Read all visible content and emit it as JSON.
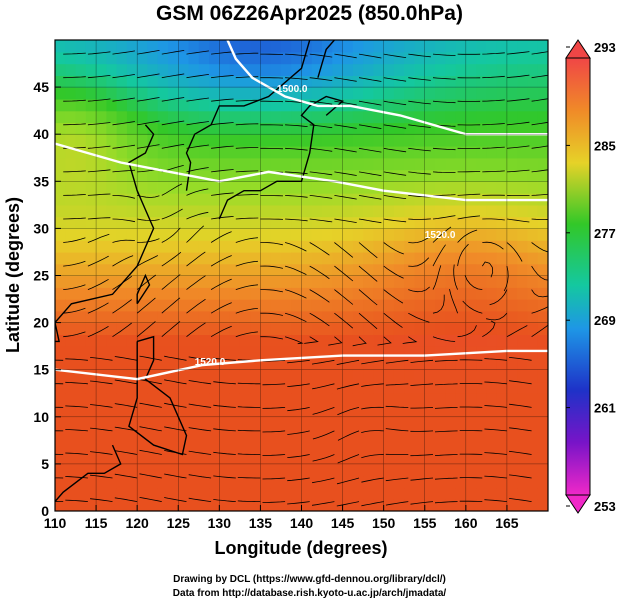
{
  "chart_data": {
    "type": "heatmap",
    "title": "GSM 06Z26Apr2025 (850.0hPa)",
    "xlabel": "Longitude (degrees)",
    "ylabel": "Latitude  (degrees)",
    "xlim": [
      110,
      170
    ],
    "ylim": [
      0,
      50
    ],
    "x_ticks": [
      "110",
      "115",
      "120",
      "125",
      "130",
      "135",
      "140",
      "145",
      "150",
      "155",
      "160",
      "165"
    ],
    "y_ticks": [
      "0",
      "5",
      "10",
      "15",
      "20",
      "25",
      "30",
      "35",
      "40",
      "45"
    ],
    "grid": true,
    "colorbar": {
      "ticks": [
        "293",
        "285",
        "277",
        "269",
        "261",
        "253"
      ],
      "range": [
        253,
        293
      ]
    },
    "contour_labels": [
      "1500.0",
      "1520.0",
      "1520.0"
    ],
    "streamlines": true,
    "coastlines": true
  },
  "credits": {
    "line1": "Drawing by DCL (https://www.gfd-dennou.org/library/dcl/)",
    "line2": "Data from http://database.rish.kyoto-u.ac.jp/arch/jmadata/"
  },
  "colors": {
    "warm": "#e8501e",
    "mid": "#3ccc28",
    "cool": "#1e9ae6",
    "contour": "#ffffff"
  }
}
